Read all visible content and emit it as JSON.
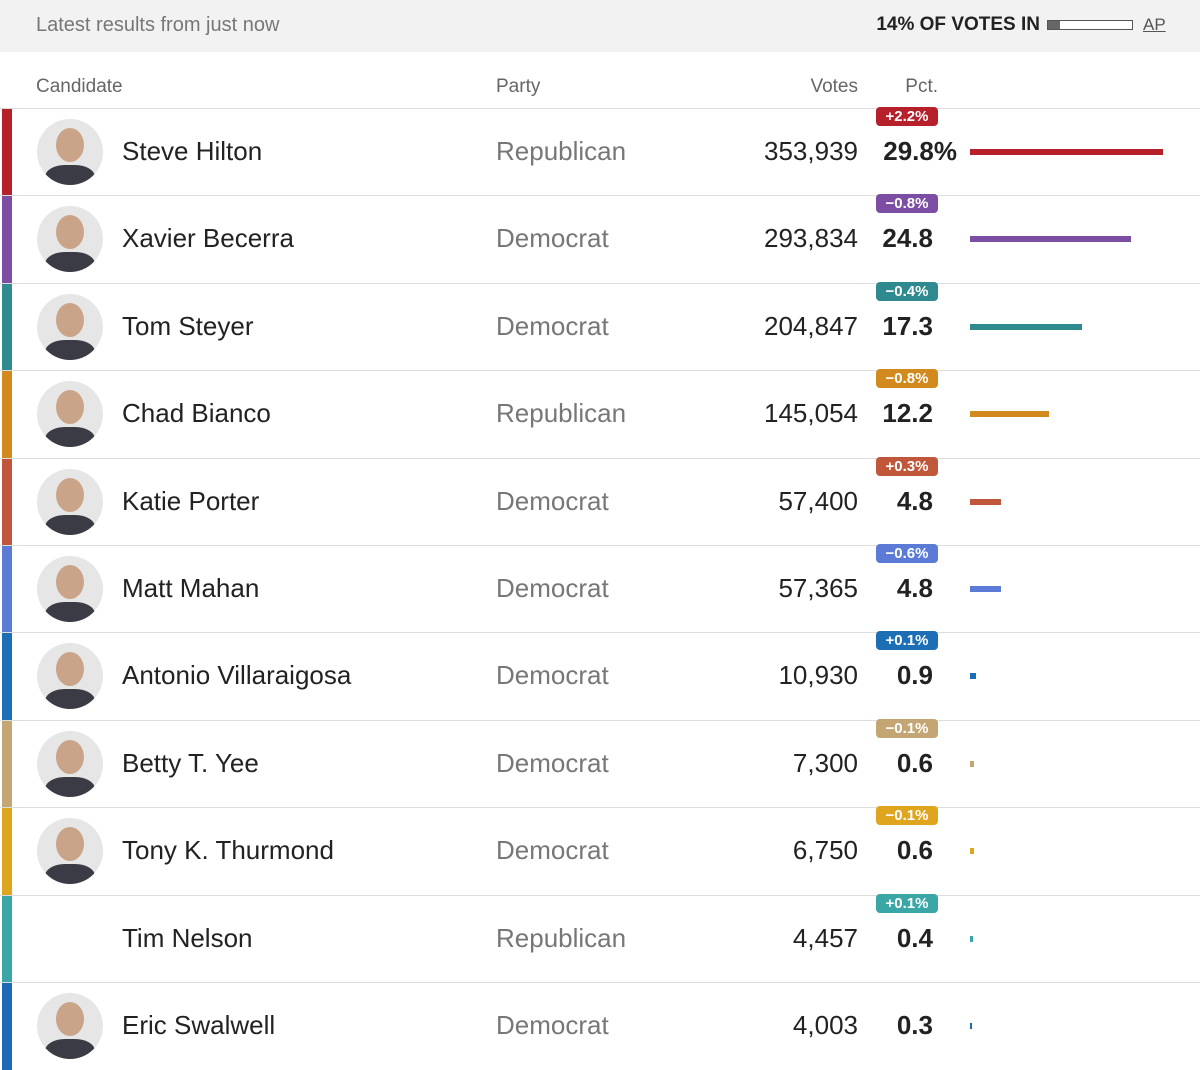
{
  "header": {
    "status": "Latest results from just now",
    "votes_in": {
      "value": 14,
      "label": "14% OF VOTES IN"
    },
    "source": "AP"
  },
  "table": {
    "columns": [
      "Candidate",
      "Party",
      "Votes",
      "Pct."
    ],
    "pct_max": 29.8,
    "rows": [
      {
        "name": "Steve Hilton",
        "party": "Republican",
        "votes": "353,939",
        "pct": 29.8,
        "pct_label": "29.8%",
        "change": "+2.2%",
        "color": "#b5202a",
        "photo": true
      },
      {
        "name": "Xavier Becerra",
        "party": "Democrat",
        "votes": "293,834",
        "pct": 24.8,
        "change": "−0.8%",
        "color": "#7b4ea3",
        "photo": true
      },
      {
        "name": "Tom Steyer",
        "party": "Democrat",
        "votes": "204,847",
        "pct": 17.3,
        "change": "−0.4%",
        "color": "#2f8a8f",
        "photo": true
      },
      {
        "name": "Chad Bianco",
        "party": "Republican",
        "votes": "145,054",
        "pct": 12.2,
        "change": "−0.8%",
        "color": "#d28a1e",
        "photo": true
      },
      {
        "name": "Katie Porter",
        "party": "Democrat",
        "votes": "57,400",
        "pct": 4.8,
        "change": "+0.3%",
        "color": "#c1573a",
        "photo": true
      },
      {
        "name": "Matt Mahan",
        "party": "Democrat",
        "votes": "57,365",
        "pct": 4.8,
        "change": "−0.6%",
        "color": "#5b7bd6",
        "photo": true
      },
      {
        "name": "Antonio Villaraigosa",
        "party": "Democrat",
        "votes": "10,930",
        "pct": 0.9,
        "change": "+0.1%",
        "color": "#1c6fb5",
        "photo": true
      },
      {
        "name": "Betty T. Yee",
        "party": "Democrat",
        "votes": "7,300",
        "pct": 0.6,
        "change": "−0.1%",
        "color": "#c4a675",
        "photo": true
      },
      {
        "name": "Tony K. Thurmond",
        "party": "Democrat",
        "votes": "6,750",
        "pct": 0.6,
        "change": "−0.1%",
        "color": "#e0a51f",
        "photo": true
      },
      {
        "name": "Tim Nelson",
        "party": "Republican",
        "votes": "4,457",
        "pct": 0.4,
        "change": "+0.1%",
        "color": "#3aa6a6",
        "photo": false
      },
      {
        "name": "Eric Swalwell",
        "party": "Democrat",
        "votes": "4,003",
        "pct": 0.3,
        "change": null,
        "color": "#1d69b8",
        "photo": true
      }
    ]
  }
}
